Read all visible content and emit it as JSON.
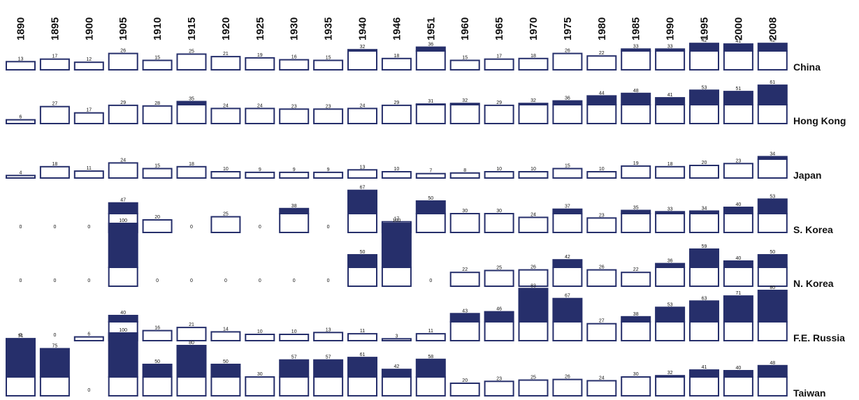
{
  "chart_data": {
    "type": "bar",
    "fill_color": "#262F6B",
    "outline_color": "#262F6B",
    "background_color": "#FFFFFF",
    "grid": false,
    "categories": [
      "1890",
      "1895",
      "1900",
      "1905",
      "1910",
      "1915",
      "1920",
      "1925",
      "1930",
      "1935",
      "1940",
      "1946",
      "1951",
      "1960",
      "1965",
      "1970",
      "1975",
      "1980",
      "1985",
      "1990",
      "1995",
      "2000",
      "2008"
    ],
    "series": [
      {
        "name": "China",
        "values": [
          13,
          17,
          12,
          26,
          15,
          25,
          21,
          19,
          16,
          15,
          32,
          18,
          36,
          15,
          17,
          18,
          26,
          22,
          33,
          33,
          42,
          41,
          42
        ]
      },
      {
        "name": "Hong Kong",
        "values": [
          6,
          27,
          17,
          29,
          28,
          35,
          24,
          24,
          23,
          23,
          24,
          29,
          31,
          32,
          29,
          32,
          36,
          44,
          48,
          41,
          53,
          51,
          61
        ]
      },
      {
        "name": "Japan",
        "values": [
          4,
          18,
          11,
          24,
          15,
          18,
          10,
          9,
          9,
          9,
          13,
          10,
          7,
          8,
          10,
          10,
          15,
          10,
          19,
          18,
          20,
          23,
          34
        ]
      },
      {
        "name": "S. Korea",
        "values": [
          0,
          0,
          0,
          47,
          20,
          0,
          25,
          0,
          38,
          0,
          67,
          17,
          50,
          30,
          30,
          24,
          37,
          23,
          35,
          33,
          34,
          40,
          53
        ]
      },
      {
        "name": "N. Korea",
        "values": [
          0,
          0,
          0,
          100,
          0,
          0,
          0,
          0,
          0,
          0,
          50,
          100,
          0,
          22,
          25,
          26,
          42,
          26,
          22,
          36,
          59,
          40,
          50
        ]
      },
      {
        "name": "F.E. Russia",
        "values": [
          0,
          0,
          6,
          40,
          16,
          21,
          14,
          10,
          10,
          13,
          11,
          3,
          11,
          43,
          46,
          83,
          67,
          27,
          38,
          53,
          63,
          71,
          80
        ]
      },
      {
        "name": "Taiwan",
        "values": [
          91,
          75,
          0,
          100,
          50,
          80,
          50,
          30,
          57,
          57,
          61,
          42,
          58,
          20,
          23,
          25,
          26,
          24,
          30,
          32,
          41,
          40,
          48
        ]
      }
    ]
  }
}
